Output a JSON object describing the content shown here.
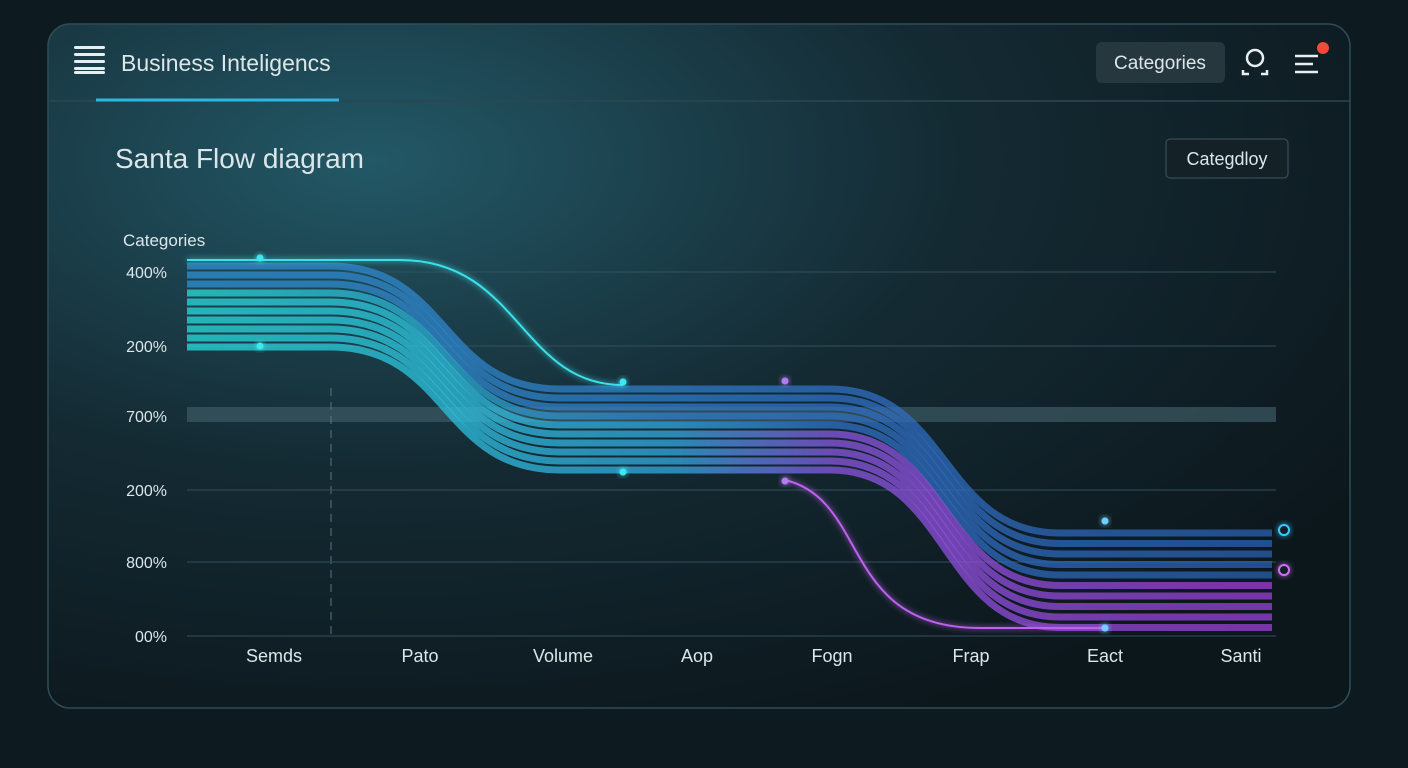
{
  "header": {
    "title": "Business Inteligencs",
    "button": "Categories"
  },
  "panel": {
    "title": "Santa Flow diagram",
    "button": "Categdloy",
    "axis_title": "Categories",
    "y_labels": [
      "400%",
      "200%",
      "700%",
      "200%",
      "800%",
      "00%"
    ],
    "x_labels": [
      "Semds",
      "Pato",
      "Volume",
      "Aop",
      "Fogn",
      "Frap",
      "Eact",
      "Santi"
    ]
  }
}
